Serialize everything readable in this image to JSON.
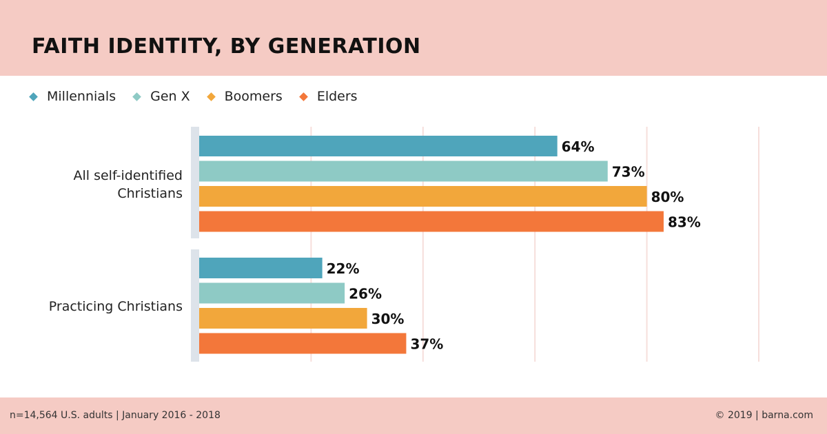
{
  "header": {
    "title": "FAITH IDENTITY, BY GENERATION"
  },
  "legend": [
    {
      "label": "Millennials",
      "color": "#4fa5bb"
    },
    {
      "label": "Gen X",
      "color": "#8ecac5"
    },
    {
      "label": "Boomers",
      "color": "#f2a73b"
    },
    {
      "label": "Elders",
      "color": "#f3773a"
    }
  ],
  "chart_data": {
    "type": "bar",
    "orientation": "horizontal",
    "categories": [
      "All self-identified Christians",
      "Practicing Christians"
    ],
    "series": [
      {
        "name": "Millennials",
        "values": [
          64,
          22
        ],
        "color": "#4fa5bb"
      },
      {
        "name": "Gen X",
        "values": [
          73,
          26
        ],
        "color": "#8ecac5"
      },
      {
        "name": "Boomers",
        "values": [
          80,
          30
        ],
        "color": "#f2a73b"
      },
      {
        "name": "Elders",
        "values": [
          83,
          37
        ],
        "color": "#f3773a"
      }
    ],
    "value_suffix": "%",
    "xlim": [
      0,
      100
    ],
    "grid": true,
    "legend_position": "top-left"
  },
  "footer": {
    "left": "n=14,564 U.S. adults  |  January 2016 - 2018",
    "right": "© 2019 | barna.com"
  }
}
